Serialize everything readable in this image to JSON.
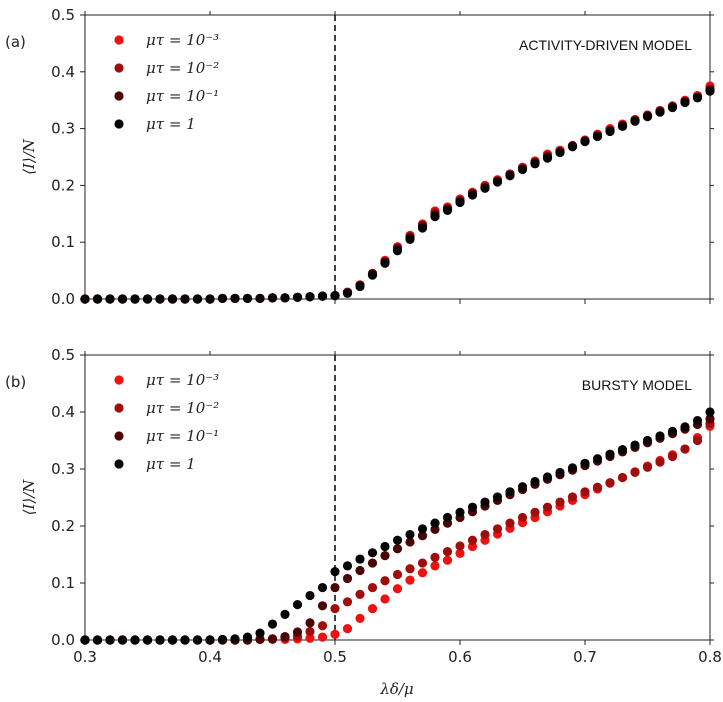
{
  "figure": {
    "xlabel": "λδ/μ"
  },
  "chart_data": [
    {
      "type": "scatter",
      "panel_label": "(a)",
      "annotation": "ACTIVITY-DRIVEN MODEL",
      "xlabel": "",
      "ylabel": "⟨I⟩/N",
      "xlim": [
        0.3,
        0.8
      ],
      "ylim": [
        0.0,
        0.5
      ],
      "xticks": [
        "0.3",
        "0.4",
        "0.5",
        "0.6",
        "0.7",
        "0.8"
      ],
      "yticks": [
        "0.0",
        "0.1",
        "0.2",
        "0.3",
        "0.4",
        "0.5"
      ],
      "threshold_line_x": 0.5,
      "grid": false,
      "legend_position": "top-left",
      "series": [
        {
          "name": "μτ = 10⁻³",
          "color": "#ee1111",
          "x": [
            0.3,
            0.31,
            0.32,
            0.33,
            0.34,
            0.35,
            0.36,
            0.37,
            0.38,
            0.39,
            0.4,
            0.41,
            0.42,
            0.43,
            0.44,
            0.45,
            0.46,
            0.47,
            0.48,
            0.49,
            0.5,
            0.51,
            0.52,
            0.53,
            0.54,
            0.55,
            0.56,
            0.57,
            0.58,
            0.59,
            0.6,
            0.61,
            0.62,
            0.63,
            0.64,
            0.65,
            0.66,
            0.67,
            0.68,
            0.69,
            0.7,
            0.71,
            0.72,
            0.73,
            0.74,
            0.75,
            0.76,
            0.77,
            0.78,
            0.79,
            0.8
          ],
          "y": [
            0,
            0,
            0,
            0,
            0,
            0,
            0,
            0,
            0,
            0,
            0,
            0.001,
            0.001,
            0.001,
            0.001,
            0.002,
            0.002,
            0.003,
            0.004,
            0.005,
            0.006,
            0.012,
            0.025,
            0.045,
            0.068,
            0.092,
            0.112,
            0.132,
            0.155,
            0.162,
            0.176,
            0.188,
            0.2,
            0.21,
            0.22,
            0.232,
            0.243,
            0.255,
            0.262,
            0.27,
            0.28,
            0.29,
            0.3,
            0.308,
            0.316,
            0.324,
            0.332,
            0.34,
            0.35,
            0.358,
            0.375
          ]
        },
        {
          "name": "μτ = 10⁻²",
          "color": "#a00d0d",
          "x": [
            0.3,
            0.31,
            0.32,
            0.33,
            0.34,
            0.35,
            0.36,
            0.37,
            0.38,
            0.39,
            0.4,
            0.41,
            0.42,
            0.43,
            0.44,
            0.45,
            0.46,
            0.47,
            0.48,
            0.49,
            0.5,
            0.51,
            0.52,
            0.53,
            0.54,
            0.55,
            0.56,
            0.57,
            0.58,
            0.59,
            0.6,
            0.61,
            0.62,
            0.63,
            0.64,
            0.65,
            0.66,
            0.67,
            0.68,
            0.69,
            0.7,
            0.71,
            0.72,
            0.73,
            0.74,
            0.75,
            0.76,
            0.77,
            0.78,
            0.79,
            0.8
          ],
          "y": [
            0,
            0,
            0,
            0,
            0,
            0,
            0,
            0,
            0,
            0,
            0,
            0.001,
            0.001,
            0.001,
            0.001,
            0.002,
            0.002,
            0.003,
            0.004,
            0.005,
            0.006,
            0.012,
            0.024,
            0.045,
            0.066,
            0.09,
            0.11,
            0.13,
            0.152,
            0.16,
            0.174,
            0.186,
            0.198,
            0.208,
            0.22,
            0.23,
            0.241,
            0.252,
            0.26,
            0.27,
            0.279,
            0.288,
            0.297,
            0.306,
            0.315,
            0.323,
            0.331,
            0.339,
            0.348,
            0.356,
            0.37
          ]
        },
        {
          "name": "μτ = 10⁻¹",
          "color": "#4a0505",
          "x": [
            0.3,
            0.31,
            0.32,
            0.33,
            0.34,
            0.35,
            0.36,
            0.37,
            0.38,
            0.39,
            0.4,
            0.41,
            0.42,
            0.43,
            0.44,
            0.45,
            0.46,
            0.47,
            0.48,
            0.49,
            0.5,
            0.51,
            0.52,
            0.53,
            0.54,
            0.55,
            0.56,
            0.57,
            0.58,
            0.59,
            0.6,
            0.61,
            0.62,
            0.63,
            0.64,
            0.65,
            0.66,
            0.67,
            0.68,
            0.69,
            0.7,
            0.71,
            0.72,
            0.73,
            0.74,
            0.75,
            0.76,
            0.77,
            0.78,
            0.79,
            0.8
          ],
          "y": [
            0,
            0,
            0,
            0,
            0,
            0,
            0,
            0,
            0,
            0,
            0,
            0.001,
            0.001,
            0.001,
            0.001,
            0.002,
            0.002,
            0.003,
            0.004,
            0.005,
            0.006,
            0.011,
            0.024,
            0.044,
            0.065,
            0.088,
            0.108,
            0.128,
            0.148,
            0.158,
            0.172,
            0.185,
            0.196,
            0.207,
            0.218,
            0.229,
            0.24,
            0.25,
            0.259,
            0.269,
            0.278,
            0.287,
            0.296,
            0.305,
            0.314,
            0.322,
            0.33,
            0.338,
            0.347,
            0.355,
            0.368
          ]
        },
        {
          "name": "μτ = 1",
          "color": "#050505",
          "x": [
            0.3,
            0.31,
            0.32,
            0.33,
            0.34,
            0.35,
            0.36,
            0.37,
            0.38,
            0.39,
            0.4,
            0.41,
            0.42,
            0.43,
            0.44,
            0.45,
            0.46,
            0.47,
            0.48,
            0.49,
            0.5,
            0.51,
            0.52,
            0.53,
            0.54,
            0.55,
            0.56,
            0.57,
            0.58,
            0.59,
            0.6,
            0.61,
            0.62,
            0.63,
            0.64,
            0.65,
            0.66,
            0.67,
            0.68,
            0.69,
            0.7,
            0.71,
            0.72,
            0.73,
            0.74,
            0.75,
            0.76,
            0.77,
            0.78,
            0.79,
            0.8
          ],
          "y": [
            0,
            0,
            0,
            0,
            0,
            0,
            0,
            0,
            0,
            0,
            0,
            0.001,
            0.001,
            0.001,
            0.001,
            0.002,
            0.002,
            0.003,
            0.004,
            0.005,
            0.006,
            0.01,
            0.022,
            0.042,
            0.063,
            0.085,
            0.105,
            0.125,
            0.145,
            0.156,
            0.17,
            0.183,
            0.195,
            0.206,
            0.217,
            0.228,
            0.238,
            0.248,
            0.258,
            0.268,
            0.277,
            0.286,
            0.295,
            0.304,
            0.313,
            0.321,
            0.329,
            0.337,
            0.346,
            0.354,
            0.366
          ]
        }
      ]
    },
    {
      "type": "scatter",
      "panel_label": "(b)",
      "annotation": "BURSTY MODEL",
      "xlabel": "λδ/μ",
      "ylabel": "⟨I⟩/N",
      "xlim": [
        0.3,
        0.8
      ],
      "ylim": [
        0.0,
        0.5
      ],
      "xticks": [
        "0.3",
        "0.4",
        "0.5",
        "0.6",
        "0.7",
        "0.8"
      ],
      "yticks": [
        "0.0",
        "0.1",
        "0.2",
        "0.3",
        "0.4",
        "0.5"
      ],
      "threshold_line_x": 0.5,
      "grid": false,
      "legend_position": "top-left",
      "series": [
        {
          "name": "μτ = 10⁻³",
          "color": "#ee1111",
          "x": [
            0.3,
            0.31,
            0.32,
            0.33,
            0.34,
            0.35,
            0.36,
            0.37,
            0.38,
            0.39,
            0.4,
            0.41,
            0.42,
            0.43,
            0.44,
            0.45,
            0.46,
            0.47,
            0.48,
            0.49,
            0.5,
            0.51,
            0.52,
            0.53,
            0.54,
            0.55,
            0.56,
            0.57,
            0.58,
            0.59,
            0.6,
            0.61,
            0.62,
            0.63,
            0.64,
            0.65,
            0.66,
            0.67,
            0.68,
            0.69,
            0.7,
            0.71,
            0.72,
            0.73,
            0.74,
            0.75,
            0.76,
            0.77,
            0.78,
            0.79,
            0.8
          ],
          "y": [
            0,
            0,
            0,
            0,
            0,
            0,
            0,
            0,
            0,
            0,
            0,
            0,
            0,
            0,
            0.001,
            0.001,
            0.001,
            0.002,
            0.003,
            0.005,
            0.01,
            0.02,
            0.038,
            0.055,
            0.072,
            0.09,
            0.105,
            0.118,
            0.13,
            0.14,
            0.152,
            0.164,
            0.175,
            0.186,
            0.196,
            0.206,
            0.215,
            0.225,
            0.235,
            0.245,
            0.255,
            0.265,
            0.275,
            0.285,
            0.295,
            0.305,
            0.315,
            0.325,
            0.335,
            0.355,
            0.375
          ]
        },
        {
          "name": "μτ = 10⁻²",
          "color": "#a00d0d",
          "x": [
            0.3,
            0.31,
            0.32,
            0.33,
            0.34,
            0.35,
            0.36,
            0.37,
            0.38,
            0.39,
            0.4,
            0.41,
            0.42,
            0.43,
            0.44,
            0.45,
            0.46,
            0.47,
            0.48,
            0.49,
            0.5,
            0.51,
            0.52,
            0.53,
            0.54,
            0.55,
            0.56,
            0.57,
            0.58,
            0.59,
            0.6,
            0.61,
            0.62,
            0.63,
            0.64,
            0.65,
            0.66,
            0.67,
            0.68,
            0.69,
            0.7,
            0.71,
            0.72,
            0.73,
            0.74,
            0.75,
            0.76,
            0.77,
            0.78,
            0.79,
            0.8
          ],
          "y": [
            0,
            0,
            0,
            0,
            0,
            0,
            0,
            0,
            0,
            0,
            0,
            0,
            0,
            0,
            0.001,
            0.002,
            0.004,
            0.007,
            0.015,
            0.025,
            0.055,
            0.067,
            0.08,
            0.092,
            0.104,
            0.115,
            0.125,
            0.135,
            0.145,
            0.155,
            0.165,
            0.175,
            0.185,
            0.195,
            0.205,
            0.215,
            0.224,
            0.233,
            0.242,
            0.251,
            0.26,
            0.268,
            0.276,
            0.285,
            0.294,
            0.303,
            0.312,
            0.322,
            0.335,
            0.35,
            0.38
          ]
        },
        {
          "name": "μτ = 10⁻¹",
          "color": "#4a0505",
          "x": [
            0.3,
            0.31,
            0.32,
            0.33,
            0.34,
            0.35,
            0.36,
            0.37,
            0.38,
            0.39,
            0.4,
            0.41,
            0.42,
            0.43,
            0.44,
            0.45,
            0.46,
            0.47,
            0.48,
            0.49,
            0.5,
            0.51,
            0.52,
            0.53,
            0.54,
            0.55,
            0.56,
            0.57,
            0.58,
            0.59,
            0.6,
            0.61,
            0.62,
            0.63,
            0.64,
            0.65,
            0.66,
            0.67,
            0.68,
            0.69,
            0.7,
            0.71,
            0.72,
            0.73,
            0.74,
            0.75,
            0.76,
            0.77,
            0.78,
            0.79,
            0.8
          ],
          "y": [
            0,
            0,
            0,
            0,
            0,
            0,
            0,
            0,
            0,
            0,
            0,
            0,
            0,
            0,
            0.001,
            0.002,
            0.006,
            0.014,
            0.03,
            0.06,
            0.092,
            0.108,
            0.122,
            0.135,
            0.148,
            0.16,
            0.172,
            0.183,
            0.194,
            0.205,
            0.215,
            0.225,
            0.235,
            0.245,
            0.255,
            0.264,
            0.273,
            0.282,
            0.29,
            0.298,
            0.306,
            0.314,
            0.322,
            0.33,
            0.338,
            0.346,
            0.354,
            0.362,
            0.37,
            0.378,
            0.388
          ]
        },
        {
          "name": "μτ = 1",
          "color": "#050505",
          "x": [
            0.3,
            0.31,
            0.32,
            0.33,
            0.34,
            0.35,
            0.36,
            0.37,
            0.38,
            0.39,
            0.4,
            0.41,
            0.42,
            0.43,
            0.44,
            0.45,
            0.46,
            0.47,
            0.48,
            0.49,
            0.5,
            0.51,
            0.52,
            0.53,
            0.54,
            0.55,
            0.56,
            0.57,
            0.58,
            0.59,
            0.6,
            0.61,
            0.62,
            0.63,
            0.64,
            0.65,
            0.66,
            0.67,
            0.68,
            0.69,
            0.7,
            0.71,
            0.72,
            0.73,
            0.74,
            0.75,
            0.76,
            0.77,
            0.78,
            0.79,
            0.8
          ],
          "y": [
            0,
            0,
            0,
            0,
            0,
            0,
            0,
            0,
            0,
            0,
            0,
            0.001,
            0.002,
            0.005,
            0.012,
            0.028,
            0.045,
            0.062,
            0.078,
            0.092,
            0.12,
            0.13,
            0.142,
            0.153,
            0.164,
            0.175,
            0.185,
            0.195,
            0.205,
            0.215,
            0.224,
            0.233,
            0.242,
            0.251,
            0.26,
            0.269,
            0.278,
            0.286,
            0.294,
            0.302,
            0.31,
            0.318,
            0.326,
            0.334,
            0.342,
            0.35,
            0.358,
            0.366,
            0.374,
            0.385,
            0.4
          ]
        }
      ]
    }
  ]
}
